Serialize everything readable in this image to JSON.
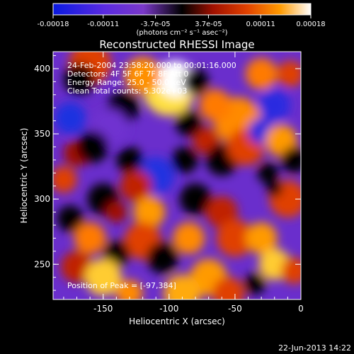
{
  "chart_data": {
    "type": "heatmap",
    "title": "Reconstructed RHESSI Image",
    "xlabel": "Heliocentric X (arcsec)",
    "ylabel": "Heliocentric Y (arcsec)",
    "xlim": [
      -188,
      0
    ],
    "ylim": [
      223,
      413
    ],
    "x_ticks": [
      "-150",
      "-100",
      "-50",
      "0"
    ],
    "y_ticks": [
      "250",
      "300",
      "350",
      "400"
    ],
    "colorbar": {
      "range": [
        -0.00018,
        0.00018
      ],
      "ticks": [
        "-0.00018",
        "-0.00011",
        "-3.7e-05",
        "3.7e-05",
        "0.00011",
        "0.00018"
      ],
      "unit": "(photons cm⁻² s⁻¹ asec⁻²)",
      "colormap": [
        "#0a1ae0",
        "#5a2ae0",
        "#7a38c8",
        "#000000",
        "#a01000",
        "#e04000",
        "#ff9a00",
        "#ffffff"
      ]
    },
    "annotations": [
      "24-Feb-2004 23:58:20.000 to 00:01:16.000",
      "Detectors: 4F 5F 6F 7F 8F  Att 0",
      "Energy Range: 25.0 - 50.0 keV",
      "Clean     Total counts: 5.302e+03"
    ],
    "peak_label": "Position of Peak = [-97,384]",
    "peak": [
      -97,
      384
    ]
  },
  "footer": {
    "date": "22-Jun-2013 14:22"
  }
}
